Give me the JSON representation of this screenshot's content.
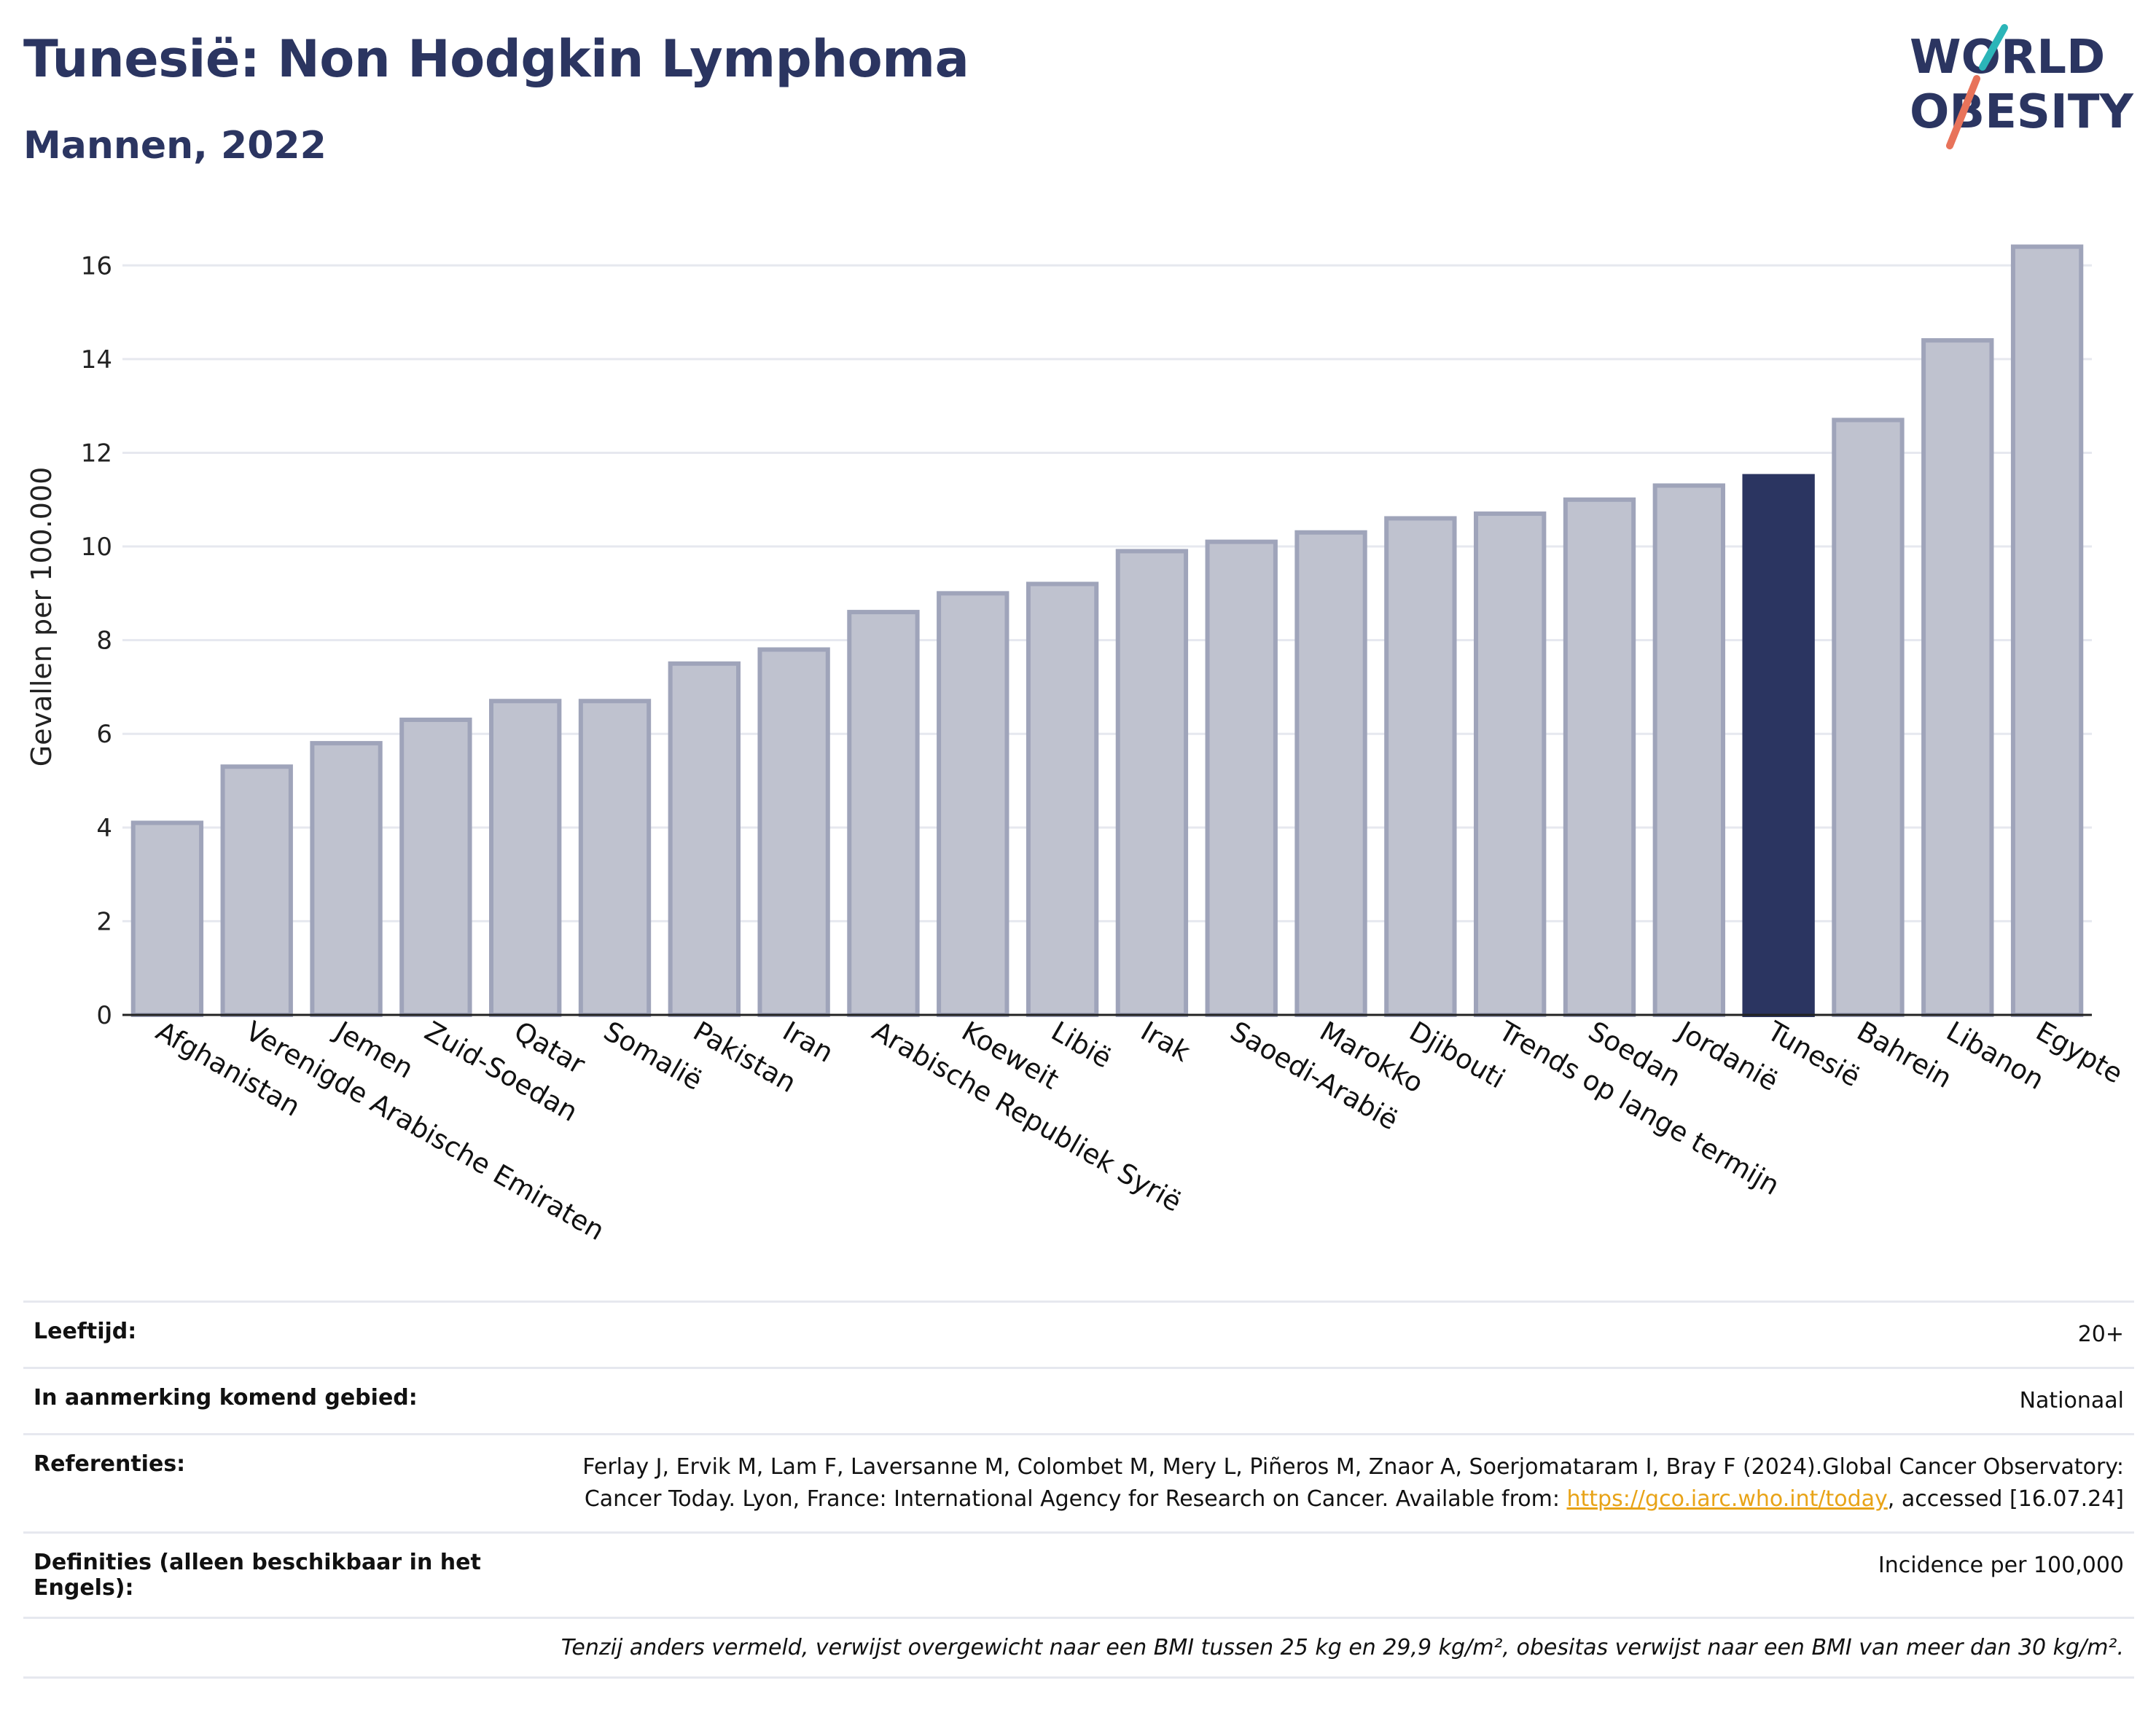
{
  "header": {
    "title": "Tunesië: Non Hodgkin Lymphoma",
    "subtitle": "Mannen, 2022"
  },
  "logo": {
    "line1": "WORLD",
    "line2": "OBESITY",
    "colors": {
      "text": "#2b3561",
      "slash_teal": "#2bb5b8",
      "slash_coral": "#e8735a"
    }
  },
  "chart_data": {
    "type": "bar",
    "ylabel": "Gevallen per 100.000",
    "ylim": [
      0,
      17
    ],
    "yticks": [
      0,
      2,
      4,
      6,
      8,
      10,
      12,
      14,
      16
    ],
    "grid": true,
    "categories": [
      "Afghanistan",
      "Verenigde Arabische Emiraten",
      "Jemen",
      "Zuid-Soedan",
      "Qatar",
      "Somalië",
      "Pakistan",
      "Iran",
      "Arabische Republiek Syrië",
      "Koeweit",
      "Libië",
      "Irak",
      "Saoedi-Arabië",
      "Marokko",
      "Djibouti",
      "Trends op lange termijn",
      "Soedan",
      "Jordanië",
      "Tunesië",
      "Bahrein",
      "Libanon",
      "Egypte"
    ],
    "values": [
      4.1,
      5.3,
      5.8,
      6.3,
      6.7,
      6.7,
      7.5,
      7.8,
      8.6,
      9.0,
      9.2,
      9.9,
      10.1,
      10.3,
      10.6,
      10.7,
      11.0,
      11.3,
      11.5,
      12.7,
      14.4,
      16.4
    ],
    "highlight": "Tunesië",
    "colors": {
      "bar": "#bfc2cf",
      "bar_border": "#9fa4ba",
      "highlight": "#2b3561"
    }
  },
  "meta": {
    "rows": [
      {
        "key": "Leeftijd:",
        "value": "20+"
      },
      {
        "key": "In aanmerking komend gebied:",
        "value": "Nationaal"
      },
      {
        "key": "Referenties:",
        "value_pre": "Ferlay J, Ervik M, Lam F, Laversanne M, Colombet M, Mery L, Piñeros M, Znaor A, Soerjomataram I, Bray F (2024).Global Cancer Observatory: Cancer Today. Lyon, France: International Agency for Research on Cancer. Available from: ",
        "link": "https://gco.iarc.who.int/today",
        "value_post": ", accessed [16.07.24]"
      },
      {
        "key": "Definities (alleen beschikbaar in het Engels):",
        "value": "Incidence per 100,000"
      }
    ],
    "note": "Tenzij anders vermeld, verwijst overgewicht naar een BMI tussen 25 kg en 29,9 kg/m², obesitas verwijst naar een BMI van meer dan 30 kg/m²."
  }
}
